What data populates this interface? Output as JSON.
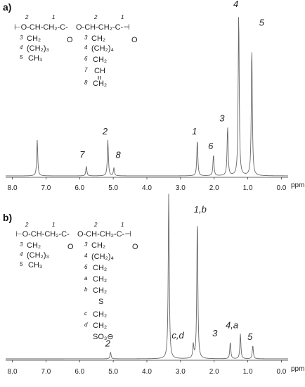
{
  "chart_data": [
    {
      "type": "line",
      "panel_label": "a)",
      "xlabel": "ppm",
      "xlim": [
        8.2,
        -0.2
      ],
      "x_ticks": [
        "8.0",
        "7.0",
        "6.0",
        "5.0",
        "4.0",
        "3.0",
        "2.0",
        "1.0",
        "0.0"
      ],
      "peaks": [
        {
          "ppm": 7.26,
          "height": 0.22,
          "label": ""
        },
        {
          "ppm": 5.8,
          "height": 0.06,
          "label": "7"
        },
        {
          "ppm": 5.16,
          "height": 0.22,
          "label": "2"
        },
        {
          "ppm": 4.98,
          "height": 0.05,
          "label": "8"
        },
        {
          "ppm": 2.5,
          "height": 0.22,
          "label": "1"
        },
        {
          "ppm": 2.02,
          "height": 0.13,
          "label": "6"
        },
        {
          "ppm": 1.6,
          "height": 0.3,
          "label": "3"
        },
        {
          "ppm": 1.27,
          "height": 1.0,
          "label": "4"
        },
        {
          "ppm": 0.88,
          "height": 0.79,
          "label": "5"
        }
      ],
      "structure": {
        "numbers": [
          "2",
          "1",
          "2",
          "1",
          "3",
          "3",
          "4",
          "4",
          "5",
          "6",
          "7",
          "8"
        ],
        "atoms": [
          "O",
          "CH",
          "CH2",
          "C",
          "O",
          "O",
          "CH",
          "CH2",
          "C",
          "O",
          "CH2",
          "CH2",
          "CH2",
          "CH2",
          "CH3",
          "CH",
          "CH2"
        ],
        "subscripts": [
          "3",
          "4"
        ]
      }
    },
    {
      "type": "line",
      "panel_label": "b)",
      "xlabel": "ppm",
      "xlim": [
        8.2,
        -0.2
      ],
      "x_ticks": [
        "8.0",
        "7.0",
        "6.0",
        "5.0",
        "4.0",
        "3.0",
        "2.0",
        "1.0",
        "0.0"
      ],
      "peaks": [
        {
          "ppm": 5.08,
          "height": 0.04,
          "label": "2"
        },
        {
          "ppm": 3.35,
          "height": 1.0,
          "label": ""
        },
        {
          "ppm": 2.62,
          "height": 0.08,
          "label": "c,d"
        },
        {
          "ppm": 2.5,
          "height": 0.84,
          "label": "1,b"
        },
        {
          "ppm": 1.52,
          "height": 0.1,
          "label": "3"
        },
        {
          "ppm": 1.22,
          "height": 0.15,
          "label": "4,a"
        },
        {
          "ppm": 0.85,
          "height": 0.08,
          "label": "5"
        }
      ],
      "structure": {
        "numbers": [
          "2",
          "1",
          "2",
          "1",
          "3",
          "3",
          "4",
          "4",
          "5",
          "6"
        ],
        "letters": [
          "a",
          "b",
          "c",
          "d"
        ],
        "atoms": [
          "O",
          "CH",
          "CH2",
          "C",
          "O",
          "O",
          "CH",
          "CH2",
          "C",
          "O",
          "CH2",
          "CH2",
          "CH2",
          "CH2",
          "CH3",
          "CH2",
          "CH2",
          "S",
          "CH2",
          "CH2",
          "SO3"
        ],
        "subscripts": [
          "3",
          "4"
        ]
      }
    }
  ]
}
